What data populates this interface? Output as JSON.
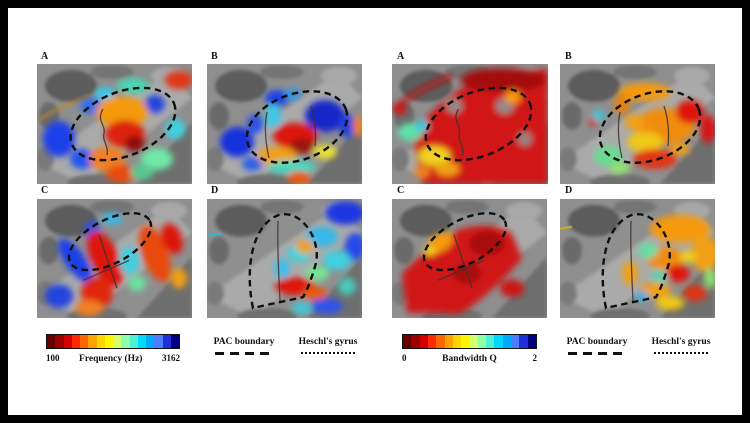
{
  "figure": {
    "frequency_group": {
      "panels": [
        {
          "label": "A"
        },
        {
          "label": "B"
        },
        {
          "label": "C"
        },
        {
          "label": "D"
        }
      ],
      "colorbar": {
        "min_label": "100",
        "title": "Frequency (Hz)",
        "max_label": "3162"
      },
      "legend": {
        "pac_label": "PAC boundary",
        "hg_label": "Heschl's gyrus"
      }
    },
    "bandwidth_group": {
      "panels": [
        {
          "label": "A"
        },
        {
          "label": "B"
        },
        {
          "label": "C"
        },
        {
          "label": "D"
        }
      ],
      "colorbar": {
        "min_label": "0",
        "title": "Bandwidth Q",
        "max_label": "2"
      },
      "legend": {
        "pac_label": "PAC boundary",
        "hg_label": "Heschl's gyrus"
      }
    },
    "colormap": [
      "#670000",
      "#9e0000",
      "#d40000",
      "#ff2a00",
      "#ff6600",
      "#ffa200",
      "#ffd500",
      "#fff700",
      "#d4ff6b",
      "#8cffa8",
      "#4df2d4",
      "#00d9ff",
      "#00aaff",
      "#4d7dff",
      "#1f2fd9",
      "#000080"
    ],
    "colors": {
      "page_background": "#000000",
      "canvas_background": "#ffffff",
      "text": "#111111",
      "pac_boundary": "#0f0f0f",
      "heschl_line": "#413030"
    }
  }
}
